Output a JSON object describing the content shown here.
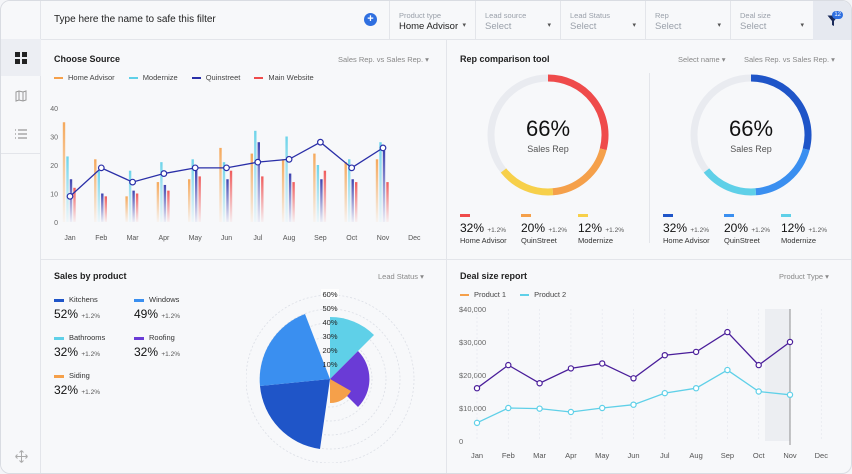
{
  "topbar": {
    "filter_placeholder": "Type here the name to safe this filter",
    "dropdowns": [
      {
        "label": "Product type",
        "value": "Home Advisor"
      },
      {
        "label": "Lead source",
        "value": "Select"
      },
      {
        "label": "Lead Status",
        "value": "Select"
      },
      {
        "label": "Rep",
        "value": "Select"
      },
      {
        "label": "Deal size",
        "value": "Select"
      }
    ],
    "filter_count": "12"
  },
  "choose_source": {
    "title": "Choose Source",
    "control": "Sales Rep. vs Sales Rep.",
    "legend": [
      {
        "name": "Home Advisor",
        "color": "#f5a04a"
      },
      {
        "name": "Modernize",
        "color": "#5fd0e8"
      },
      {
        "name": "Quinstreet",
        "color": "#2a2fa8"
      },
      {
        "name": "Main Website",
        "color": "#ef4b4b"
      }
    ]
  },
  "rep_comparison": {
    "title": "Rep comparison tool",
    "select_name": "Select name",
    "control": "Sales Rep. vs Sales Rep.",
    "gauges": [
      {
        "percent": "66%",
        "label": "Sales Rep",
        "stats": [
          {
            "value": "32%",
            "delta": "+1.2%",
            "name": "Home Advisor",
            "color": "#ef4b4b"
          },
          {
            "value": "20%",
            "delta": "+1.2%",
            "name": "QuinStreet",
            "color": "#f5a04a"
          },
          {
            "value": "12%",
            "delta": "+1.2%",
            "name": "Modernize",
            "color": "#f7d04a"
          }
        ]
      },
      {
        "percent": "66%",
        "label": "Sales Rep",
        "stats": [
          {
            "value": "32%",
            "delta": "+1.2%",
            "name": "Home Advisor",
            "color": "#1f55c8"
          },
          {
            "value": "20%",
            "delta": "+1.2%",
            "name": "QuinStreet",
            "color": "#3a8ff0"
          },
          {
            "value": "12%",
            "delta": "+1.2%",
            "name": "Modernize",
            "color": "#5fd0e8"
          }
        ]
      }
    ]
  },
  "sales_by_product": {
    "title": "Sales by product",
    "control": "Lead Status",
    "items": [
      {
        "name": "Kitchens",
        "value": "52%",
        "delta": "+1.2%",
        "color": "#1f55c8"
      },
      {
        "name": "Windows",
        "value": "49%",
        "delta": "+1.2%",
        "color": "#3a8ff0"
      },
      {
        "name": "Bathrooms",
        "value": "32%",
        "delta": "+1.2%",
        "color": "#5fd0e8"
      },
      {
        "name": "Roofing",
        "value": "32%",
        "delta": "+1.2%",
        "color": "#6a3bd6"
      },
      {
        "name": "Siding",
        "value": "32%",
        "delta": "+1.2%",
        "color": "#f5a04a"
      }
    ],
    "radial_ticks": [
      "60%",
      "50%",
      "40%",
      "30%",
      "20%",
      "10%"
    ]
  },
  "deal_size": {
    "title": "Deal size report",
    "control": "Product Type",
    "legend": [
      {
        "name": "Product 1",
        "color": "#f5a04a"
      },
      {
        "name": "Product 2",
        "color": "#5fd0e8"
      }
    ]
  },
  "chart_data": [
    {
      "type": "line",
      "title": "Choose Source",
      "categories": [
        "Jan",
        "Feb",
        "Mar",
        "Apr",
        "May",
        "Jun",
        "Jul",
        "Aug",
        "Sep",
        "Oct",
        "Nov",
        "Dec"
      ],
      "yticks": [
        "0",
        "10",
        "20",
        "30",
        "40"
      ],
      "ylim": [
        0,
        40
      ],
      "series": [
        {
          "name": "Quinstreet",
          "values": [
            9,
            19,
            14,
            17,
            19,
            19,
            21,
            22,
            28,
            19,
            26,
            null
          ]
        }
      ],
      "bar_series": [
        {
          "name": "Home Advisor",
          "values": [
            35,
            22,
            9,
            14,
            15,
            26,
            24,
            22,
            24,
            21,
            22,
            null
          ]
        },
        {
          "name": "Modernize",
          "values": [
            23,
            18,
            18,
            21,
            22,
            21,
            32,
            30,
            20,
            22,
            28,
            null
          ]
        },
        {
          "name": "Quinstreet",
          "values": [
            15,
            10,
            11,
            13,
            18,
            15,
            28,
            17,
            15,
            15,
            25,
            null
          ]
        },
        {
          "name": "Main Website",
          "values": [
            12,
            9,
            10,
            11,
            16,
            18,
            16,
            14,
            18,
            14,
            14,
            null
          ]
        }
      ]
    },
    {
      "type": "line",
      "title": "Deal size report",
      "categories": [
        "Jan",
        "Feb",
        "Mar",
        "Apr",
        "May",
        "Jun",
        "Jul",
        "Aug",
        "Sep",
        "Oct",
        "Nov",
        "Dec"
      ],
      "yticks": [
        "0",
        "$10,000",
        "$20,000",
        "$30,000",
        "$40,000"
      ],
      "ylim": [
        0,
        40000
      ],
      "series": [
        {
          "name": "Product 1",
          "values": [
            16000,
            23000,
            17500,
            22000,
            23500,
            19000,
            26000,
            27000,
            33000,
            23000,
            30000,
            null
          ]
        },
        {
          "name": "Product 2",
          "values": [
            5500,
            10000,
            9800,
            8800,
            10000,
            11000,
            14500,
            16000,
            21500,
            15000,
            14000,
            null
          ]
        }
      ],
      "highlight_category": "Nov"
    }
  ]
}
